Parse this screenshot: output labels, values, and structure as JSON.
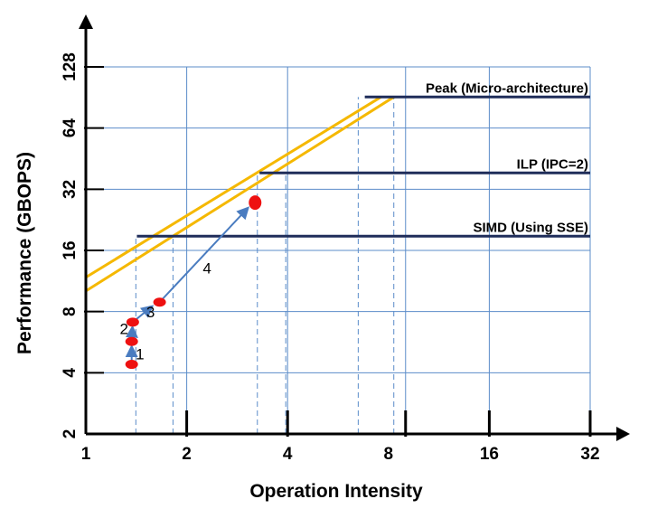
{
  "chart_data": {
    "type": "line",
    "title": "",
    "xlabel": "Operation Intensity",
    "ylabel": "Performance (GBOPS)",
    "x_scale": "log2",
    "y_scale": "log2",
    "xlim": [
      1,
      32
    ],
    "ylim": [
      2,
      128
    ],
    "x_ticks": [
      {
        "value": 1,
        "label": "1"
      },
      {
        "value": 2,
        "label": "2"
      },
      {
        "value": 4,
        "label": "4"
      },
      {
        "value": 8,
        "label": "8"
      },
      {
        "value": 16,
        "label": "16"
      },
      {
        "value": 32,
        "label": "32"
      }
    ],
    "y_ticks": [
      {
        "value": 2,
        "label": "2"
      },
      {
        "value": 4,
        "label": "4"
      },
      {
        "value": 8,
        "label": "8"
      },
      {
        "value": 16,
        "label": "16"
      },
      {
        "value": 32,
        "label": "32"
      },
      {
        "value": 64,
        "label": "64"
      },
      {
        "value": 128,
        "label": "128"
      }
    ],
    "grid": true,
    "colors": {
      "roof": "#1f2d5a",
      "slope": "#f5b800",
      "grid": "#5b8cc9",
      "point": "#ee1111",
      "arrow": "#4a7cc0",
      "dashed": "#5b8cc9"
    },
    "roofs": [
      {
        "label": "Peak (Micro-architecture)",
        "y": 91,
        "x_start": 6.8,
        "x_end": 32
      },
      {
        "label": "ILP  (IPC=2)",
        "y": 38.5,
        "x_start": 3.3,
        "x_end": 32
      },
      {
        "label": "SIMD (Using SSE)",
        "y": 18.8,
        "x_start": 1.42,
        "x_end": 32
      }
    ],
    "slopes": [
      {
        "x": [
          1,
          7.6
        ],
        "y": [
          11.8,
          91
        ]
      },
      {
        "x": [
          1,
          8.3
        ],
        "y": [
          10.1,
          91
        ]
      }
    ],
    "points": [
      {
        "x": 1.37,
        "y": 4.4
      },
      {
        "x": 1.37,
        "y": 5.7
      },
      {
        "x": 1.38,
        "y": 7.1
      },
      {
        "x": 1.66,
        "y": 8.9
      },
      {
        "x": 3.2,
        "y": 27.5
      }
    ],
    "steps": [
      {
        "label": "1",
        "from": [
          1.37,
          4.4
        ],
        "to": [
          1.37,
          5.7
        ],
        "label_at": [
          1.45,
          4.65
        ]
      },
      {
        "label": "2",
        "from": [
          1.37,
          5.7
        ],
        "to": [
          1.38,
          7.1
        ],
        "label_at": [
          1.3,
          6.2
        ]
      },
      {
        "label": "3",
        "from": [
          1.38,
          7.1
        ],
        "to": [
          1.62,
          8.8
        ],
        "label_at": [
          1.56,
          7.5
        ]
      },
      {
        "label": "4",
        "from": [
          1.66,
          8.9
        ],
        "to": [
          3.12,
          27.0
        ],
        "label_at": [
          2.3,
          12.3
        ]
      }
    ],
    "dashed_drops": [
      {
        "x": 1.41,
        "y_top": 18.8
      },
      {
        "x": 1.82,
        "y_top": 18.8
      },
      {
        "x": 3.25,
        "y_top": 38.5
      },
      {
        "x": 3.95,
        "y_top": 38.5
      },
      {
        "x": 6.5,
        "y_top": 91
      },
      {
        "x": 8.3,
        "y_top": 91
      }
    ],
    "x_guides": [
      2,
      4,
      9,
      16,
      32
    ]
  }
}
